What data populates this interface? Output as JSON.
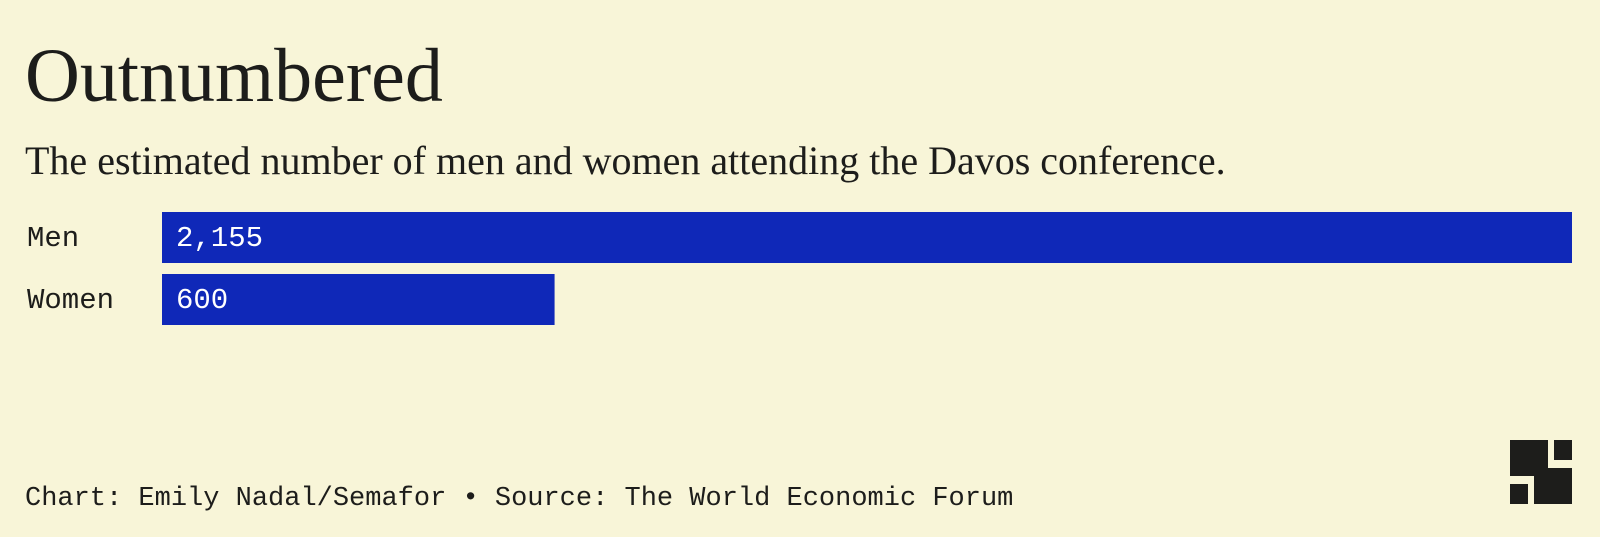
{
  "chart_data": {
    "type": "bar",
    "orientation": "horizontal",
    "title": "Outnumbered",
    "subtitle": "The estimated number of men and women attending the Davos conference.",
    "categories": [
      "Men",
      "Women"
    ],
    "values": [
      2155,
      600
    ],
    "value_labels": [
      "2,155",
      "600"
    ],
    "color": "#0f28b8",
    "source": "Chart: Emily Nadal/Semafor • Source: The World Economic Forum"
  }
}
